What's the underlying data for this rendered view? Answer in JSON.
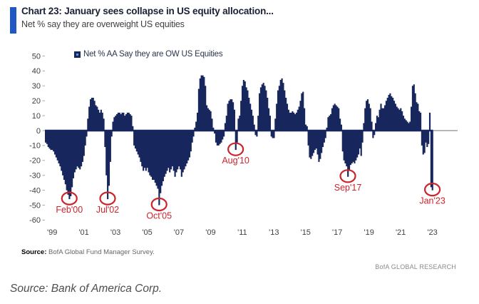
{
  "header": {
    "title": "Chart 23: January sees collapse in US equity allocation...",
    "subtitle": "Net % say they are overweight US equities",
    "accent_color": "#2157c2"
  },
  "legend": {
    "label": "Net % AA Say they are OW US Equities",
    "marker_color": "#17265c",
    "marker_inner_color": "#5b9bd5"
  },
  "chart_data": {
    "type": "bar",
    "title": "Net % AA Say they are OW US Equities",
    "frequency": "monthly",
    "x_start": "1998-08",
    "x_end": "2023-01",
    "values": [
      -8,
      -9,
      -11,
      -12,
      -13,
      -13,
      -14,
      -16,
      -18,
      -20,
      -22,
      -24,
      -27,
      -30,
      -33,
      -36,
      -40,
      -43,
      -46,
      -44,
      -38,
      -32,
      -28,
      -26,
      -24,
      -25,
      -26,
      -24,
      -21,
      -17,
      -10,
      -4,
      8,
      16,
      21,
      22,
      22,
      20,
      17,
      16,
      14,
      12,
      14,
      12,
      8,
      -11,
      -30,
      -46,
      -37,
      -21,
      -4,
      6,
      9,
      10,
      11,
      12,
      12,
      11,
      12,
      12,
      10,
      11,
      12,
      12,
      11,
      10,
      3,
      -10,
      -12,
      -14,
      -16,
      -18,
      -21,
      -24,
      -27,
      -25,
      -27,
      -25,
      -28,
      -30,
      -31,
      -33,
      -33,
      -35,
      -37,
      -39,
      -50,
      -42,
      -37,
      -34,
      -31,
      -29,
      -27,
      -25,
      -28,
      -26,
      -24,
      -27,
      -31,
      -28,
      -26,
      -24,
      -26,
      -31,
      -28,
      -26,
      -24,
      -22,
      -20,
      -18,
      -14,
      -8,
      -4,
      2,
      6,
      12,
      28,
      35,
      37,
      37,
      36,
      30,
      17,
      15,
      14,
      13,
      8,
      2,
      -2,
      -8,
      -10,
      -10,
      -9,
      -8,
      -6,
      -4,
      5,
      10,
      18,
      20,
      21,
      21,
      19,
      14,
      -13,
      -8,
      8,
      10,
      20,
      30,
      34,
      33,
      29,
      27,
      22,
      18,
      14,
      10,
      4,
      -3,
      -4,
      10,
      25,
      29,
      31,
      32,
      30,
      27,
      22,
      15,
      10,
      -4,
      -5,
      -5,
      8,
      18,
      27,
      30,
      34,
      35,
      32,
      27,
      22,
      18,
      14,
      12,
      12,
      13,
      12,
      11,
      12,
      14,
      16,
      20,
      25,
      26,
      15,
      4,
      3,
      -10,
      -18,
      -19,
      -17,
      -15,
      -13,
      -12,
      -16,
      -21,
      -19,
      -15,
      -11,
      -8,
      -5,
      2,
      9,
      10,
      11,
      15,
      17,
      18,
      17,
      16,
      15,
      8,
      4,
      -14,
      -20,
      -22,
      -24,
      -31,
      -27,
      -23,
      -22,
      -21,
      -22,
      -20,
      -18,
      -16,
      -12,
      -17,
      -8,
      5,
      15,
      20,
      21,
      18,
      15,
      6,
      -5,
      -3,
      5,
      10,
      9,
      14,
      18,
      15,
      15,
      17,
      20,
      22,
      24,
      25,
      23,
      22,
      20,
      18,
      16,
      15,
      14,
      15,
      13,
      10,
      8,
      7,
      6,
      5,
      6,
      16,
      30,
      31,
      25,
      19,
      18,
      13,
      12,
      -10,
      -16,
      -15,
      -8,
      -11,
      -9,
      12,
      -38,
      -40
    ],
    "bar_color": "#17265c",
    "ylim": [
      -60,
      50
    ],
    "ytick_step": 10,
    "ytick_labels": [
      "50",
      "40",
      "30",
      "20",
      "10",
      "0",
      "-10",
      "-20",
      "-30",
      "-40",
      "-50",
      "-60"
    ],
    "xtick_labels": [
      "'99",
      "'01",
      "'03",
      "'05",
      "'07",
      "'09",
      "'11",
      "'13",
      "'15",
      "'17",
      "'19",
      "'21",
      "'23"
    ],
    "xtick_year_start": 1999,
    "xtick_year_step": 2,
    "grid": false,
    "zero_line": true,
    "legend_position": "top",
    "annotation_color": "#c9252d",
    "annotations": [
      {
        "label": "Feb'00",
        "month": "2000-02",
        "value": -46
      },
      {
        "label": "Jul'02",
        "month": "2002-07",
        "value": -46
      },
      {
        "label": "Oct'05",
        "month": "2005-10",
        "value": -50
      },
      {
        "label": "Aug'10",
        "month": "2010-08",
        "value": -13
      },
      {
        "label": "Sep'17",
        "month": "2017-09",
        "value": -31
      },
      {
        "label": "Jan'23",
        "month": "2023-01",
        "value": -40
      }
    ]
  },
  "footer": {
    "source_label": "Source:",
    "source_text": " BofA Global Fund Manager Survey.",
    "brand": "BofA GLOBAL RESEARCH"
  },
  "caption": "Source: Bank of America Corp."
}
